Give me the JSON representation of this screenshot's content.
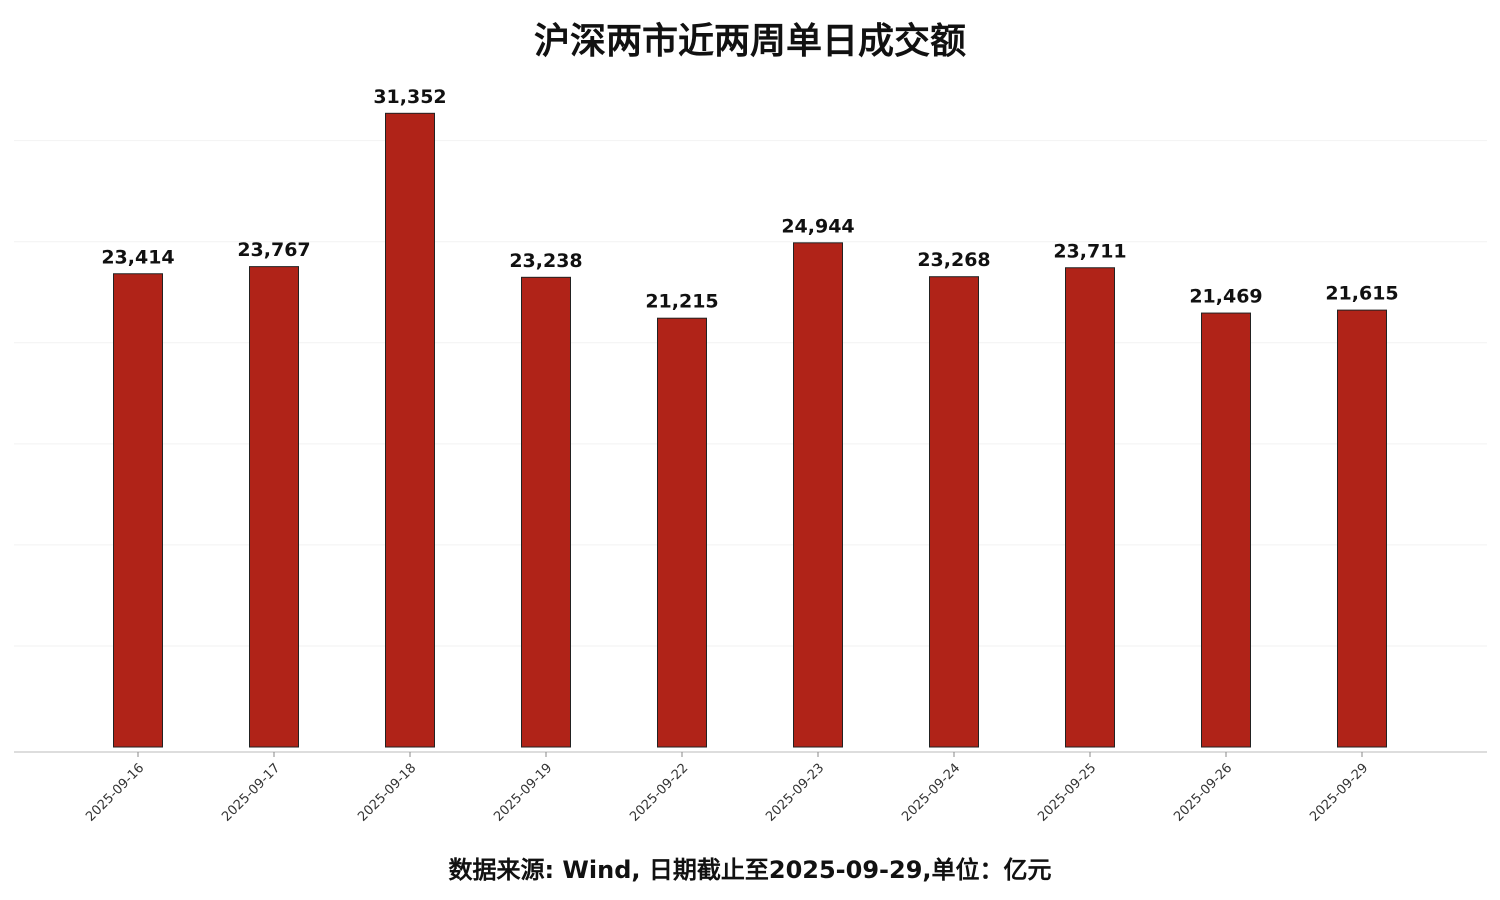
{
  "chart_data": {
    "type": "bar",
    "title": "沪深两市近两周单日成交额",
    "categories": [
      "2025-09-16",
      "2025-09-17",
      "2025-09-18",
      "2025-09-19",
      "2025-09-22",
      "2025-09-23",
      "2025-09-24",
      "2025-09-25",
      "2025-09-26",
      "2025-09-29"
    ],
    "values": [
      23414,
      23767,
      31352,
      23238,
      21215,
      24944,
      23268,
      23711,
      21469,
      21615
    ],
    "value_labels": [
      "23,414",
      "23,767",
      "31,352",
      "23,238",
      "21,215",
      "24,944",
      "23,268",
      "23,711",
      "21,469",
      "21,615"
    ],
    "color": "#b02318",
    "ylim": [
      0,
      33000
    ],
    "yticks": [
      5000,
      10000,
      15000,
      20000,
      25000,
      30000
    ],
    "grid": true,
    "source": "数据来源: Wind, 日期截止至2025-09-29,单位：亿元"
  }
}
